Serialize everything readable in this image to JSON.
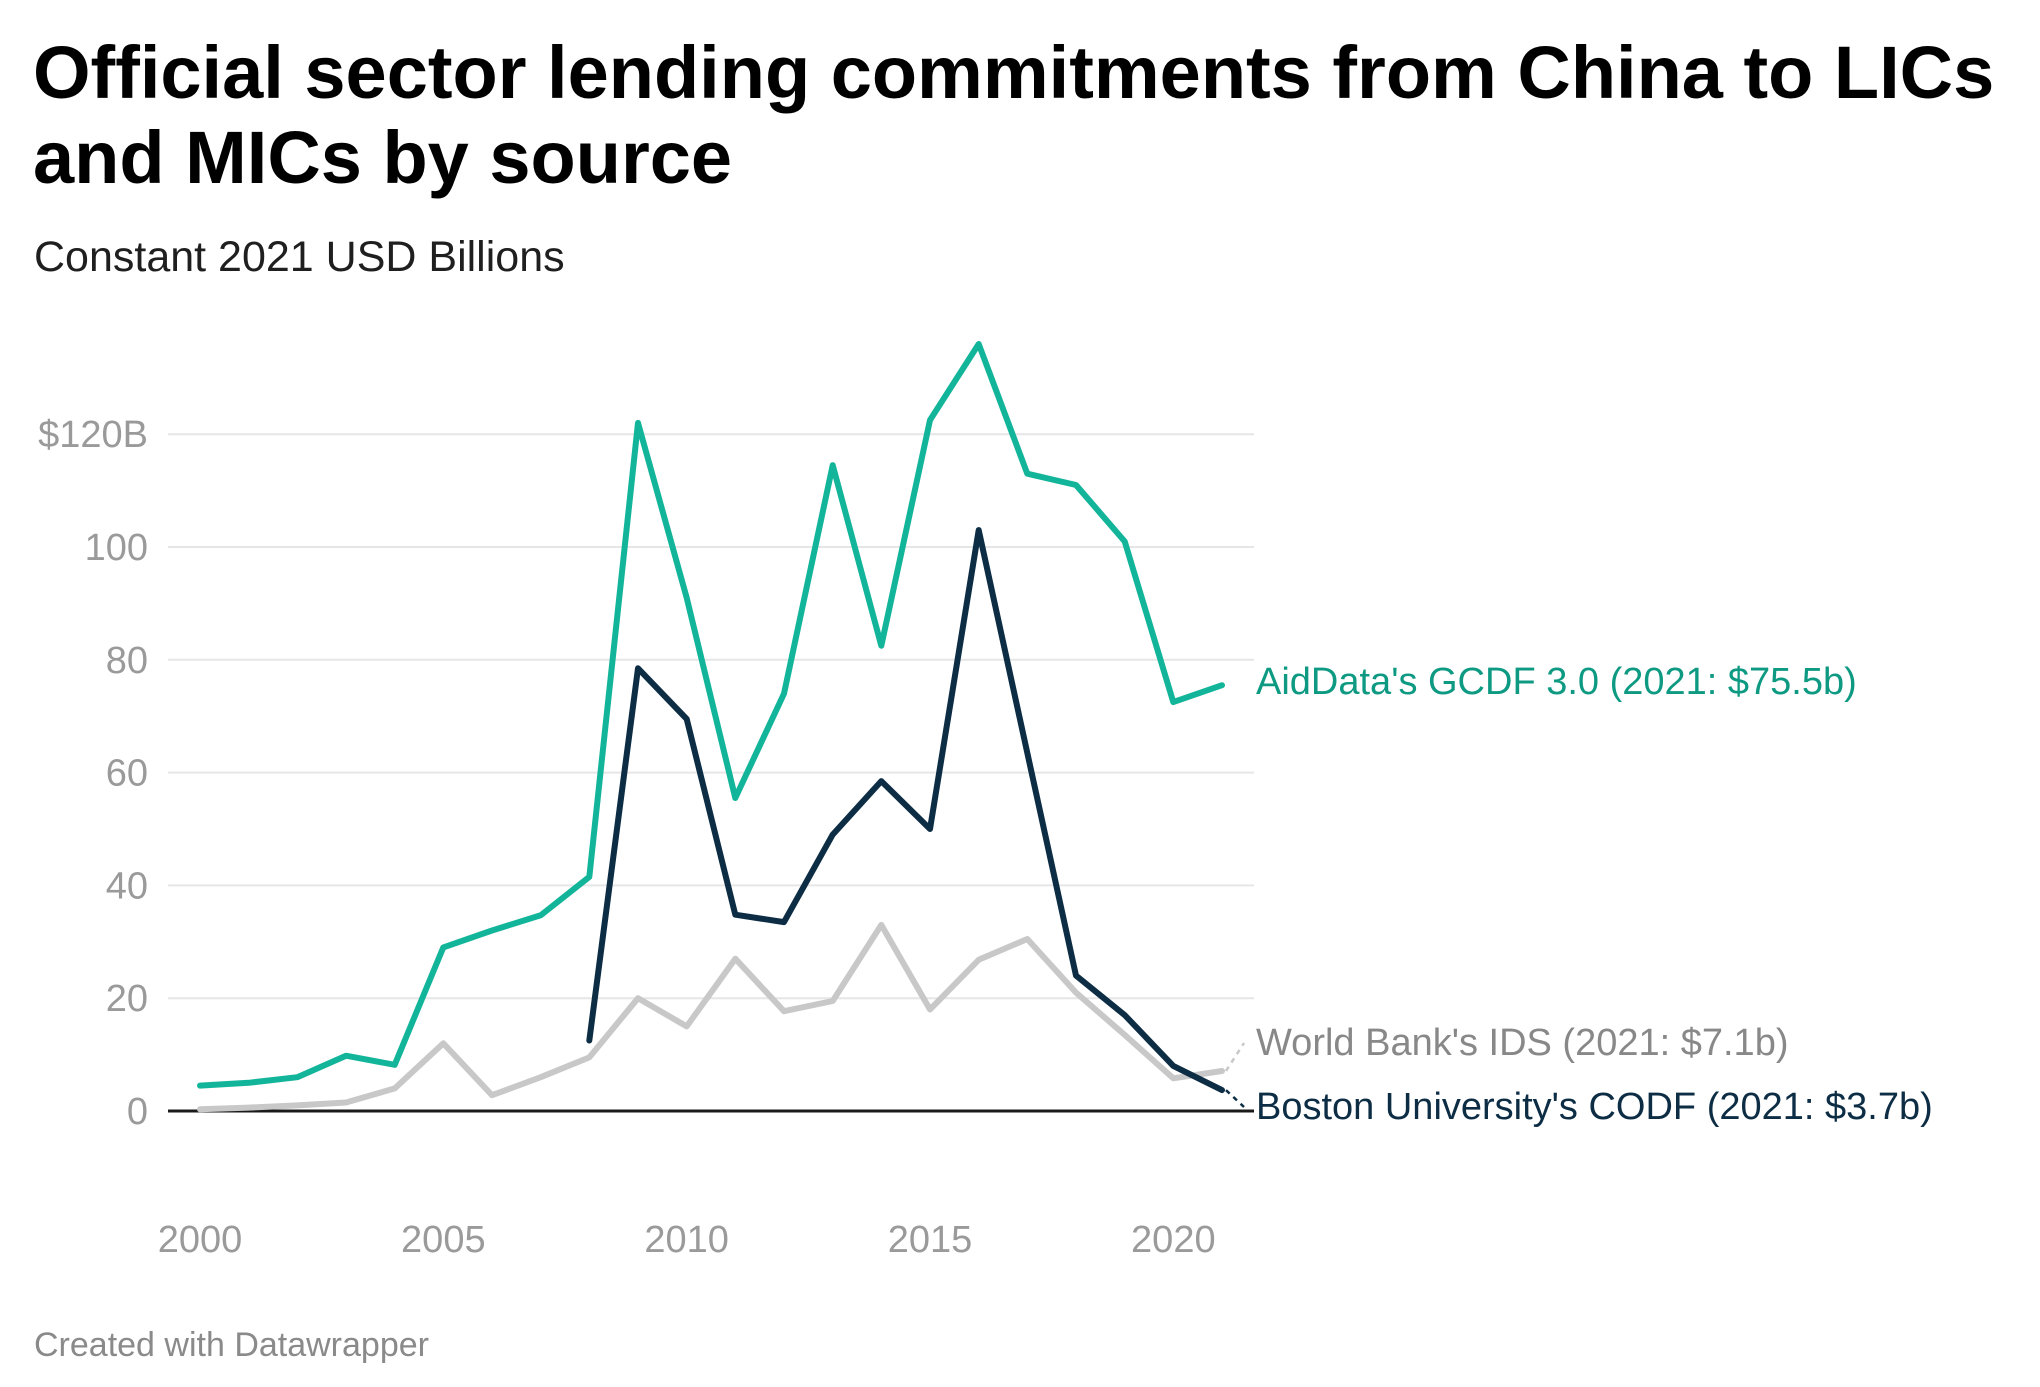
{
  "title": "Official sector lending commitments from China to LICs and MICs by source",
  "subtitle": "Constant 2021 USD Billions",
  "footer": "Created with Datawrapper",
  "colors": {
    "aiddata": "#13b59a",
    "bu": "#0d2d45",
    "wb": "#c8c8c8",
    "aiddata_label": "#0e9a82",
    "bu_label": "#0d2d45",
    "wb_label": "#888888",
    "grid": "#e6e6e6",
    "axis": "#1a1a1a"
  },
  "chart_data": {
    "type": "line",
    "title": "Official sector lending commitments from China to LICs and MICs by source",
    "subtitle": "Constant 2021 USD Billions",
    "xlim": [
      2000,
      2021
    ],
    "ylim": [
      0,
      125
    ],
    "x_ticks": [
      2000,
      2005,
      2010,
      2015,
      2020
    ],
    "y_ticks": [
      {
        "value": 0,
        "label": "0"
      },
      {
        "value": 20,
        "label": "20"
      },
      {
        "value": 40,
        "label": "40"
      },
      {
        "value": 60,
        "label": "60"
      },
      {
        "value": 80,
        "label": "80"
      },
      {
        "value": 100,
        "label": "100"
      },
      {
        "value": 120,
        "label": "$120B"
      }
    ],
    "grid": true,
    "legend": "direct labels at line ends (right)",
    "series": [
      {
        "key": "wb",
        "name": "World Bank's IDS (2021: $7.1b)",
        "x": [
          2000,
          2001,
          2002,
          2003,
          2004,
          2005,
          2006,
          2007,
          2008,
          2009,
          2010,
          2011,
          2012,
          2013,
          2014,
          2015,
          2016,
          2017,
          2018,
          2019,
          2020,
          2021
        ],
        "values": [
          0.3,
          0.6,
          1.0,
          1.5,
          4.0,
          12.0,
          2.8,
          6.0,
          9.5,
          20.0,
          15.0,
          27.0,
          17.7,
          19.5,
          33.0,
          18.0,
          26.8,
          30.5,
          21.0,
          13.5,
          5.8,
          7.1
        ]
      },
      {
        "key": "aiddata",
        "name": "AidData's GCDF 3.0 (2021: $75.5b)",
        "x": [
          2000,
          2001,
          2002,
          2003,
          2004,
          2005,
          2006,
          2007,
          2008,
          2009,
          2010,
          2011,
          2012,
          2013,
          2014,
          2015,
          2016,
          2017,
          2018,
          2019,
          2020,
          2021
        ],
        "values": [
          4.5,
          5.0,
          6.0,
          9.8,
          8.2,
          29.0,
          32.0,
          34.7,
          41.5,
          122.0,
          91.0,
          55.5,
          74.0,
          114.5,
          82.5,
          122.5,
          136.0,
          113.0,
          111.0,
          101.0,
          72.5,
          75.5
        ]
      },
      {
        "key": "bu",
        "name": "Boston University's CODF (2021: $3.7b)",
        "x": [
          2008,
          2009,
          2010,
          2011,
          2012,
          2013,
          2014,
          2015,
          2016,
          2017,
          2018,
          2019,
          2020,
          2021
        ],
        "values": [
          12.5,
          78.5,
          69.5,
          34.8,
          33.5,
          49.0,
          58.5,
          50.0,
          103.0,
          63.5,
          24.0,
          17.0,
          8.0,
          3.7
        ]
      }
    ]
  }
}
